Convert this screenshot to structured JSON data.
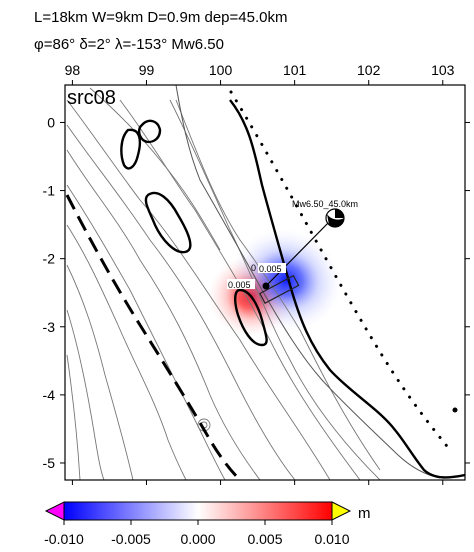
{
  "header": {
    "line1": "L=18km W=9km D=0.9m dep=45.0km",
    "line2": "φ=86° δ=2° λ=-153° Mw6.50"
  },
  "map": {
    "panel_label": "src08",
    "x_ticks": [
      "98",
      "99",
      "100",
      "101",
      "102",
      "103"
    ],
    "y_ticks": [
      "0",
      "-1",
      "-2",
      "-3",
      "-4",
      "-5"
    ],
    "x_range": [
      97.9,
      103.3
    ],
    "y_range": [
      -5.25,
      0.55
    ],
    "source_label": "Mw6.50_45.0km",
    "contour_labels": [
      "0.005",
      "0.005",
      "0"
    ],
    "colors": {
      "positive": "#e8000a",
      "negative": "#1020ff",
      "trench": "#000000"
    }
  },
  "colorbar": {
    "ticks": [
      "-0.010",
      "-0.005",
      "0.000",
      "0.005",
      "0.010"
    ],
    "unit": "m",
    "range": [
      -0.01,
      0.01
    ],
    "colors": {
      "under": "#ff00ff",
      "over": "#ffff00"
    }
  }
}
